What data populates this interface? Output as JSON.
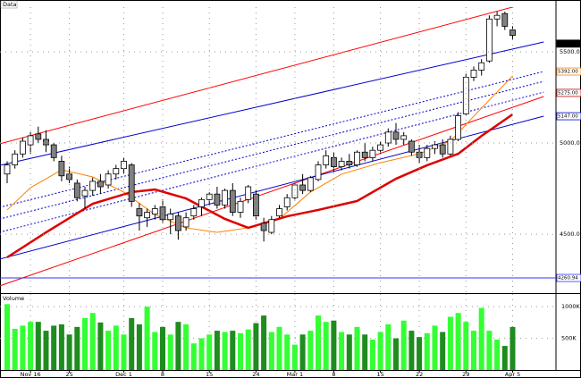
{
  "chart_data": {
    "type": "candlestick",
    "panel_label": "Data",
    "categories": [
      null,
      null,
      null,
      "Nov 16",
      null,
      null,
      null,
      null,
      "25",
      null,
      null,
      null,
      null,
      null,
      null,
      "Dec 1",
      null,
      null,
      null,
      null,
      "8",
      null,
      null,
      null,
      null,
      null,
      "15",
      null,
      null,
      null,
      null,
      null,
      "24",
      null,
      null,
      null,
      null,
      "Mar 1",
      null,
      null,
      null,
      null,
      "8",
      null,
      null,
      null,
      null,
      null,
      "15",
      null,
      null,
      null,
      null,
      "22",
      null,
      null,
      null,
      null,
      null,
      "29",
      null,
      null,
      null,
      null,
      null,
      "Apr 5"
    ],
    "ohlc": [
      [
        4830,
        4900,
        4780,
        4880
      ],
      [
        4880,
        4960,
        4860,
        4940
      ],
      [
        4940,
        5030,
        4920,
        5010
      ],
      [
        4990,
        5060,
        4940,
        5040
      ],
      [
        5050,
        5090,
        5000,
        5020
      ],
      [
        5020,
        5070,
        4950,
        4990
      ],
      [
        4990,
        5000,
        4900,
        4920
      ],
      [
        4900,
        4930,
        4790,
        4820
      ],
      [
        4830,
        4870,
        4780,
        4800
      ],
      [
        4780,
        4800,
        4680,
        4700
      ],
      [
        4710,
        4760,
        4640,
        4740
      ],
      [
        4740,
        4810,
        4710,
        4790
      ],
      [
        4790,
        4830,
        4720,
        4760
      ],
      [
        4770,
        4850,
        4750,
        4830
      ],
      [
        4830,
        4880,
        4800,
        4860
      ],
      [
        4860,
        4920,
        4830,
        4900
      ],
      [
        4880,
        4890,
        4650,
        4680
      ],
      [
        4640,
        4670,
        4520,
        4600
      ],
      [
        4590,
        4640,
        4540,
        4620
      ],
      [
        4610,
        4660,
        4580,
        4640
      ],
      [
        4650,
        4690,
        4560,
        4580
      ],
      [
        4580,
        4640,
        4500,
        4610
      ],
      [
        4600,
        4620,
        4470,
        4520
      ],
      [
        4540,
        4620,
        4520,
        4590
      ],
      [
        4600,
        4660,
        4580,
        4640
      ],
      [
        4650,
        4700,
        4600,
        4690
      ],
      [
        4690,
        4730,
        4660,
        4720
      ],
      [
        4720,
        4760,
        4640,
        4660
      ],
      [
        4660,
        4750,
        4640,
        4740
      ],
      [
        4740,
        4780,
        4600,
        4620
      ],
      [
        4620,
        4700,
        4590,
        4680
      ],
      [
        4690,
        4770,
        4670,
        4760
      ],
      [
        4720,
        4740,
        4580,
        4600
      ],
      [
        4560,
        4590,
        4460,
        4520
      ],
      [
        4510,
        4600,
        4500,
        4580
      ],
      [
        4600,
        4660,
        4590,
        4640
      ],
      [
        4650,
        4720,
        4630,
        4700
      ],
      [
        4700,
        4780,
        4690,
        4770
      ],
      [
        4770,
        4830,
        4720,
        4740
      ],
      [
        4740,
        4820,
        4730,
        4810
      ],
      [
        4800,
        4900,
        4790,
        4880
      ],
      [
        4880,
        4960,
        4860,
        4930
      ],
      [
        4920,
        4950,
        4840,
        4870
      ],
      [
        4870,
        4920,
        4850,
        4900
      ],
      [
        4900,
        4940,
        4860,
        4880
      ],
      [
        4880,
        4960,
        4870,
        4950
      ],
      [
        4950,
        5000,
        4900,
        4920
      ],
      [
        4920,
        4980,
        4900,
        4960
      ],
      [
        4960,
        5010,
        4940,
        4990
      ],
      [
        5000,
        5080,
        4980,
        5060
      ],
      [
        5060,
        5110,
        4990,
        5020
      ],
      [
        5020,
        5060,
        4990,
        5040
      ],
      [
        5010,
        5020,
        4930,
        4950
      ],
      [
        4950,
        4990,
        4890,
        4920
      ],
      [
        4920,
        4990,
        4900,
        4970
      ],
      [
        4970,
        5010,
        4940,
        4990
      ],
      [
        4990,
        5020,
        4920,
        4940
      ],
      [
        4940,
        5040,
        4930,
        5020
      ],
      [
        5020,
        5170,
        5010,
        5150
      ],
      [
        5160,
        5380,
        5150,
        5360
      ],
      [
        5360,
        5420,
        5340,
        5400
      ],
      [
        5400,
        5460,
        5370,
        5440
      ],
      [
        5450,
        5700,
        5440,
        5680
      ],
      [
        5680,
        5720,
        5640,
        5700
      ],
      [
        5710,
        5720,
        5620,
        5640
      ],
      [
        5620,
        5640,
        5570,
        5590
      ]
    ],
    "up_color": "#ffffff",
    "down_color": "#808080",
    "ylim": [
      4177,
      5745
    ],
    "yticks": [
      {
        "value": 4500,
        "label": "4500.00"
      },
      {
        "value": 5000,
        "label": "5000.00"
      },
      {
        "value": 5500,
        "label": "5500.00"
      }
    ],
    "grid": true,
    "lines": [
      {
        "color": "#ff0000",
        "width": 1,
        "dash": false,
        "x": [
          -1,
          70.6
        ],
        "values": [
          4995,
          5809
        ]
      },
      {
        "color": "#0000cc",
        "width": 1,
        "dash": false,
        "x": [
          -1,
          69
        ],
        "values": [
          4877,
          5554
        ]
      },
      {
        "color": "#0000cc",
        "width": 1,
        "dash": true,
        "x": [
          -1,
          69
        ],
        "values": [
          4647,
          5392
        ]
      },
      {
        "color": "#0000cc",
        "width": 1,
        "dash": true,
        "x": [
          -1,
          69
        ],
        "values": [
          4583,
          5338
        ]
      },
      {
        "color": "#0000cc",
        "width": 1,
        "dash": true,
        "x": [
          -1,
          69
        ],
        "values": [
          4510,
          5279
        ]
      },
      {
        "color": "#ff0000",
        "width": 1,
        "dash": false,
        "x": [
          -1,
          69
        ],
        "values": [
          4216,
          5255
        ]
      },
      {
        "color": "#0000cc",
        "width": 1,
        "dash": false,
        "x": [
          -1,
          69
        ],
        "values": [
          4363,
          5147
        ]
      },
      {
        "color": "#3333ff",
        "width": 1,
        "dash": false,
        "x": [
          -1,
          70.6
        ],
        "values": [
          4260,
          4260
        ]
      },
      {
        "color": "#ff8000",
        "width": 1,
        "dash": false,
        "x": [
          0,
          3,
          7,
          11,
          15,
          19,
          23,
          27,
          31,
          35,
          39,
          43,
          48,
          53,
          57,
          60,
          65
        ],
        "values": [
          4633,
          4755,
          4853,
          4814,
          4731,
          4608,
          4535,
          4510,
          4535,
          4584,
          4731,
          4829,
          4892,
          4941,
          5010,
          5147,
          5368
        ]
      },
      {
        "color": "#dd0000",
        "width": 2.5,
        "dash": false,
        "x": [
          0,
          5,
          11,
          16,
          19,
          23,
          28,
          31,
          36,
          40,
          45,
          50,
          54,
          58,
          61,
          65
        ],
        "values": [
          4373,
          4510,
          4667,
          4731,
          4745,
          4696,
          4584,
          4535,
          4598,
          4633,
          4682,
          4804,
          4878,
          4941,
          5039,
          5157
        ]
      }
    ],
    "price_markers": [
      {
        "value": 5545,
        "label": "5545.00",
        "color": "#000000"
      },
      {
        "value": 5392,
        "label": "5392.00",
        "color": "#ff8000"
      },
      {
        "value": 5275,
        "label": "5275.00",
        "color": "#cc0000"
      },
      {
        "value": 5147,
        "label": "5147.00",
        "color": "#0000cc"
      },
      {
        "value": 4260,
        "label": "4260.94",
        "color": "#3333ff"
      }
    ],
    "volume": {
      "label": "Volume",
      "values": [
        1040,
        650,
        700,
        760,
        760,
        620,
        700,
        720,
        560,
        680,
        820,
        900,
        750,
        620,
        700,
        560,
        820,
        720,
        1000,
        600,
        680,
        560,
        760,
        720,
        420,
        500,
        560,
        620,
        600,
        620,
        580,
        640,
        740,
        860,
        600,
        680,
        560,
        400,
        560,
        620,
        860,
        760,
        780,
        600,
        560,
        680,
        560,
        480,
        600,
        720,
        500,
        780,
        620,
        520,
        580,
        700,
        600,
        840,
        900,
        760,
        620,
        980,
        620,
        480,
        380,
        680
      ],
      "up_color": "#33ff33",
      "down_color": "#1e8c1e",
      "ylim": [
        0,
        1200
      ],
      "yticks": [
        {
          "value": 500,
          "label": "500K"
        },
        {
          "value": 1000,
          "label": "1000K"
        }
      ]
    }
  }
}
